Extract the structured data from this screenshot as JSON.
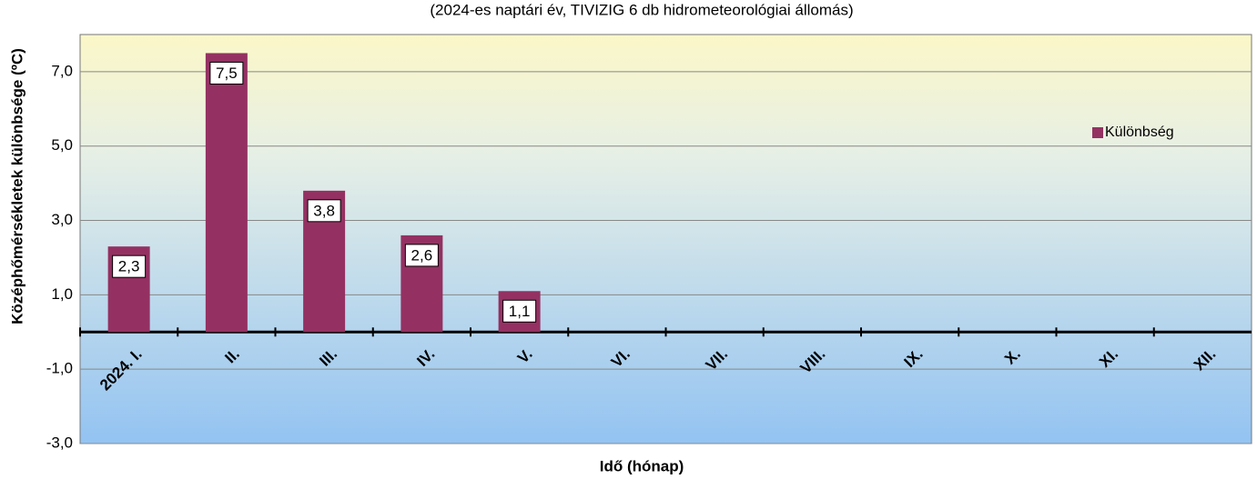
{
  "chart_data": {
    "type": "bar",
    "subtitle": "(2024-es naptári év, TIVIZIG 6 db hidrometeorológiai állomás)",
    "y_label": "Középhőmérsékletek különbsége (ºC)",
    "x_label": "Idő (hónap)",
    "categories": [
      "2024. I.",
      "II.",
      "III.",
      "IV.",
      "V.",
      "VI.",
      "VII.",
      "VIII.",
      "IX.",
      "X.",
      "XI.",
      "XII."
    ],
    "series": [
      {
        "name": "Különbség",
        "color": "#943162",
        "values": [
          2.3,
          7.5,
          3.8,
          2.6,
          1.1,
          null,
          null,
          null,
          null,
          null,
          null,
          null
        ],
        "value_labels": [
          "2,3",
          "7,5",
          "3,8",
          "2,6",
          "1,1",
          null,
          null,
          null,
          null,
          null,
          null,
          null
        ]
      }
    ],
    "ylim": [
      -3,
      8
    ],
    "yticks": [
      {
        "value": -3,
        "label": "-3,0"
      },
      {
        "value": -1,
        "label": "-1,0"
      },
      {
        "value": 1,
        "label": "1,0"
      },
      {
        "value": 3,
        "label": "3,0"
      },
      {
        "value": 5,
        "label": "5,0"
      },
      {
        "value": 7,
        "label": "7,0"
      }
    ],
    "grid": true,
    "legend": "right"
  }
}
